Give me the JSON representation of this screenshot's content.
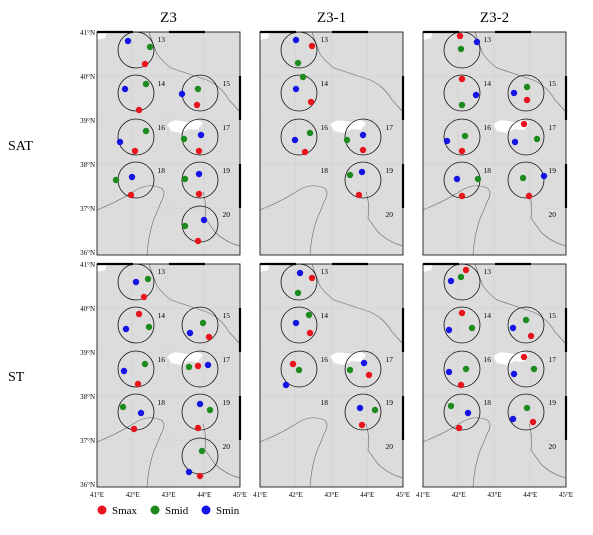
{
  "column_titles": [
    "Z3",
    "Z3-1",
    "Z3-2"
  ],
  "row_labels": [
    "SAT",
    "ST"
  ],
  "lat_ticks": [
    "41°N",
    "40°N",
    "39°N",
    "38°N",
    "37°N",
    "36°N"
  ],
  "lon_ticks": [
    "41°E",
    "42°E",
    "43°E",
    "44°E",
    "45°E"
  ],
  "legend": [
    {
      "label": "Smax",
      "color": "#e8141b"
    },
    {
      "label": "Smid",
      "color": "#1d8a1d"
    },
    {
      "label": "Smin",
      "color": "#1414e6"
    }
  ],
  "colors": {
    "land": "#dcdcdc",
    "water": "#ffffff",
    "frame": "#000000",
    "grid": "#c8c8c8"
  },
  "site_ids": [
    "13",
    "14",
    "15",
    "16",
    "17",
    "18",
    "19",
    "20"
  ],
  "panels": [
    {
      "row": "SAT",
      "column": "Z3",
      "sites": [
        "13",
        "14",
        "15",
        "16",
        "17",
        "18",
        "19",
        "20"
      ]
    },
    {
      "row": "SAT",
      "column": "Z3-1",
      "sites": [
        "13",
        "14",
        "15",
        "16",
        "17",
        "18",
        "19",
        "20"
      ]
    },
    {
      "row": "SAT",
      "column": "Z3-2",
      "sites": [
        "13",
        "14",
        "15",
        "16",
        "17",
        "18",
        "19",
        "20"
      ]
    },
    {
      "row": "ST",
      "column": "Z3",
      "sites": [
        "13",
        "14",
        "15",
        "16",
        "17",
        "18",
        "19",
        "20"
      ]
    },
    {
      "row": "ST",
      "column": "Z3-1",
      "sites": [
        "13",
        "14",
        "15",
        "16",
        "17",
        "18",
        "19",
        "20"
      ]
    },
    {
      "row": "ST",
      "column": "Z3-2",
      "sites": [
        "13",
        "14",
        "15",
        "16",
        "17",
        "18",
        "19",
        "20"
      ]
    }
  ]
}
